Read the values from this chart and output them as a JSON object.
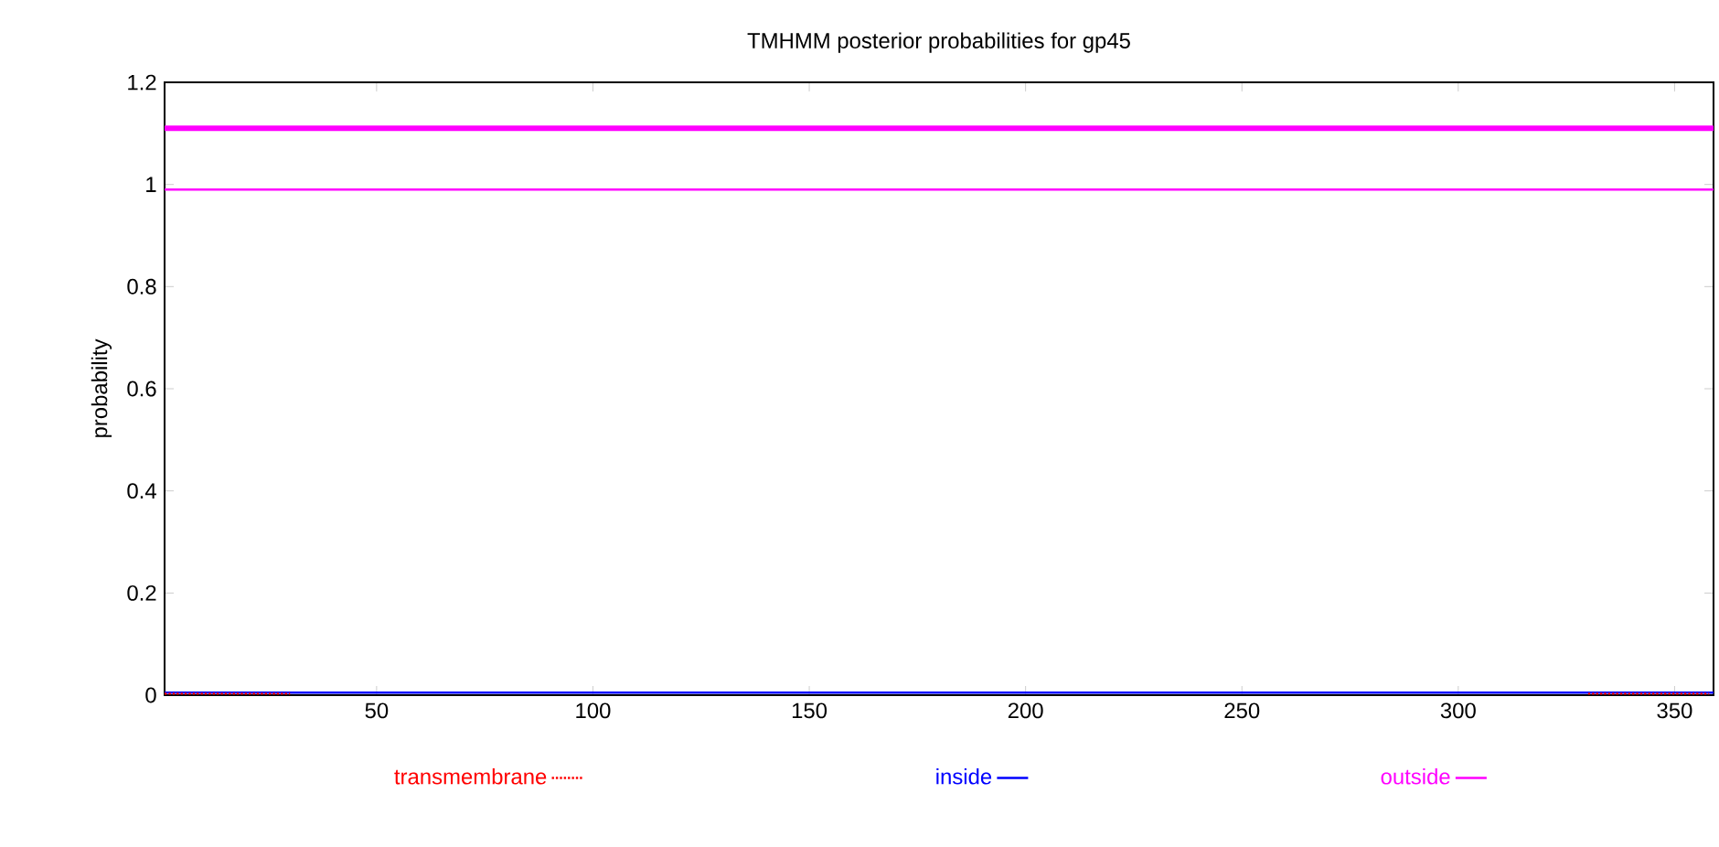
{
  "chart_data": {
    "type": "line",
    "title": "TMHMM posterior probabilities for gp45",
    "ylabel": "probability",
    "xlim": [
      1,
      359
    ],
    "ylim": [
      0,
      1.2
    ],
    "xticks": [
      50,
      100,
      150,
      200,
      250,
      300,
      350
    ],
    "yticks": [
      0,
      0.2,
      0.4,
      0.6,
      0.8,
      1,
      1.2
    ],
    "legend": "bottom",
    "series": [
      {
        "name": "transmembrane",
        "color": "#ff0000",
        "line_style": "dotted",
        "x": [
          1,
          30,
          31,
          330,
          358
        ],
        "values": [
          0.003,
          0.003,
          null,
          0.003,
          0.003
        ]
      },
      {
        "name": "inside",
        "color": "#0000ff",
        "x": [
          1,
          359
        ],
        "values": [
          0.005,
          0.005
        ]
      },
      {
        "name": "outside",
        "color": "#ff00ff",
        "x": [
          1,
          359
        ],
        "values": [
          0.99,
          0.99
        ]
      }
    ],
    "ref_lines": [
      {
        "axis": "y",
        "value": 1.11,
        "color": "#ff00ff"
      }
    ]
  }
}
